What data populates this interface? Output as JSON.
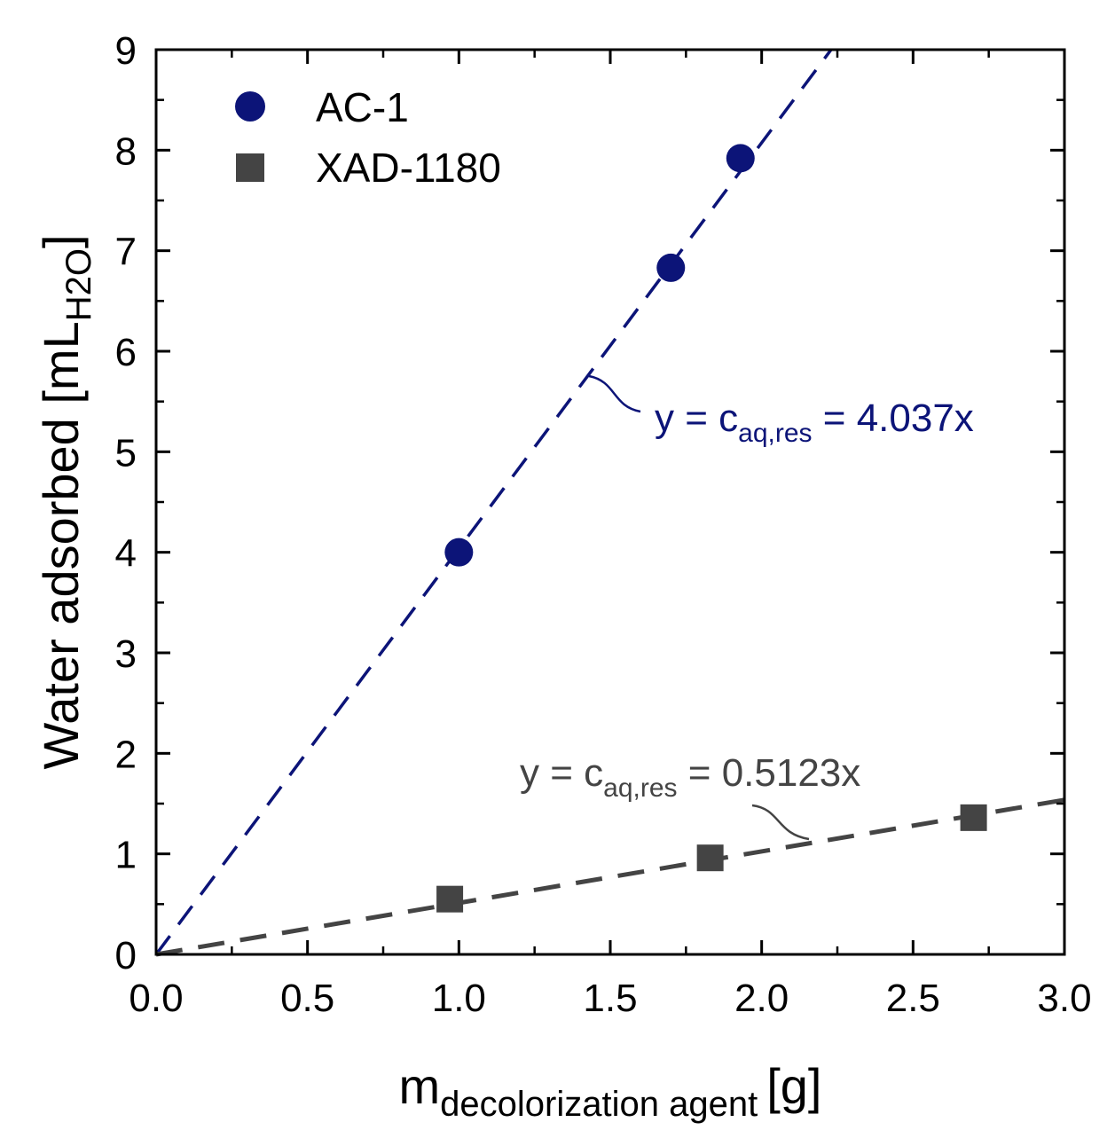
{
  "chart_data": {
    "type": "scatter",
    "title": "",
    "xlabel": {
      "main": "m",
      "sub": "decolorization agent",
      "unit": "[g]"
    },
    "ylabel": {
      "main": "Water adsorbed [mL",
      "sub": "H2O",
      "close": "]"
    },
    "xlim": [
      0,
      3
    ],
    "ylim": [
      0,
      9
    ],
    "x_ticks": [
      0.0,
      0.5,
      1.0,
      1.5,
      2.0,
      2.5,
      3.0
    ],
    "x_tick_labels": [
      "0.0",
      "0.5",
      "1.0",
      "1.5",
      "2.0",
      "2.5",
      "3.0"
    ],
    "y_ticks": [
      0,
      1,
      2,
      3,
      4,
      5,
      6,
      7,
      8,
      9
    ],
    "y_tick_labels": [
      "0",
      "1",
      "2",
      "3",
      "4",
      "5",
      "6",
      "7",
      "8",
      "9"
    ],
    "legend_position": "top-left",
    "series": [
      {
        "name": "AC-1",
        "marker": "circle",
        "color": "#0c1478",
        "x": [
          1.0,
          1.7,
          1.93
        ],
        "y": [
          4.0,
          6.83,
          7.92
        ],
        "fit": {
          "slope": 4.037,
          "label_prefix": "y = c",
          "label_sub": "aq,res",
          "label_suffix": " = 4.037x"
        }
      },
      {
        "name": "XAD-1180",
        "marker": "square",
        "color": "#444444",
        "x": [
          0.97,
          1.83,
          2.7
        ],
        "y": [
          0.55,
          0.96,
          1.36
        ],
        "fit": {
          "slope": 0.5123,
          "label_prefix": "y = c",
          "label_sub": "aq,res",
          "label_suffix": " = 0.5123x"
        }
      }
    ]
  }
}
